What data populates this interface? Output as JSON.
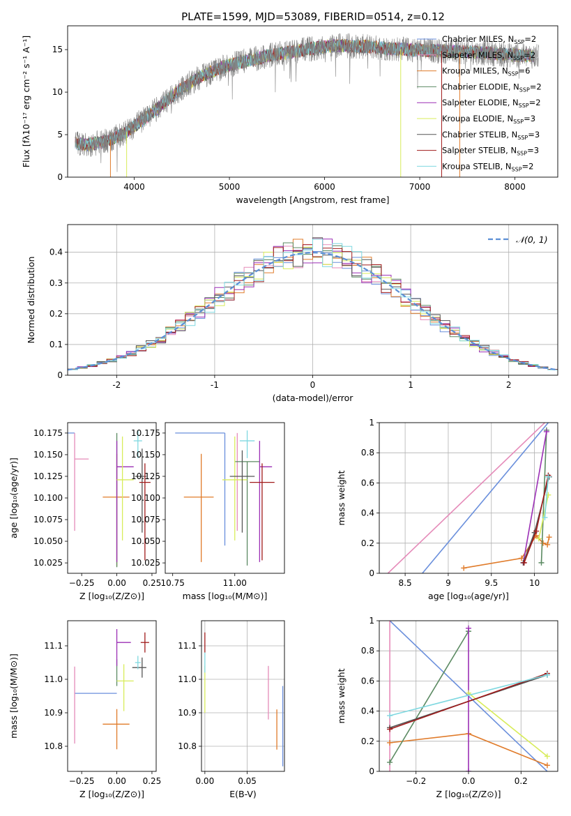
{
  "figure_title": "PLATE=1599, MJD=53089, FIBERID=0514, z=0.12",
  "colors": {
    "Chabrier MILES": "#6a8fdc",
    "Salpeter MILES": "#e58bb9",
    "Kroupa MILES": "#e07b2a",
    "Chabrier ELODIE": "#5b8a62",
    "Salpeter ELODIE": "#9b2fb5",
    "Kroupa ELODIE": "#d8ec5a",
    "Chabrier STELIB": "#555555",
    "Salpeter STELIB": "#a01a1a",
    "Kroupa STELIB": "#7fd8e0"
  },
  "chart_data": [
    {
      "type": "line",
      "id": "spectrum",
      "xlabel": "wavelength [Angstrom, rest frame]",
      "ylabel": "Flux [fλ10⁻¹⁷ erg cm⁻² s⁻¹ A⁻¹]",
      "xlim": [
        3300,
        8450
      ],
      "ylim": [
        0,
        17.8
      ],
      "xticks": [
        4000,
        5000,
        6000,
        7000,
        8000
      ],
      "yticks": [
        0,
        5,
        10,
        15
      ],
      "legend_position": "right",
      "legend": [
        {
          "series": "Chabrier MILES",
          "label": "Chabrier MILES, N",
          "sub": "SSP",
          "suffix": "=2"
        },
        {
          "series": "Salpeter MILES",
          "label": "Salpeter MILES, N",
          "sub": "SSP",
          "suffix": "=2"
        },
        {
          "series": "Kroupa MILES",
          "label": "Kroupa MILES, N",
          "sub": "SSP",
          "suffix": "=6"
        },
        {
          "series": "Chabrier ELODIE",
          "label": "Chabrier ELODIE, N",
          "sub": "SSP",
          "suffix": "=2"
        },
        {
          "series": "Salpeter ELODIE",
          "label": "Salpeter ELODIE, N",
          "sub": "SSP",
          "suffix": "=2"
        },
        {
          "series": "Kroupa ELODIE",
          "label": "Kroupa ELODIE, N",
          "sub": "SSP",
          "suffix": "=3"
        },
        {
          "series": "Chabrier STELIB",
          "label": "Chabrier STELIB, N",
          "sub": "SSP",
          "suffix": "=3"
        },
        {
          "series": "Salpeter STELIB",
          "label": "Salpeter STELIB, N",
          "sub": "SSP",
          "suffix": "=3"
        },
        {
          "series": "Kroupa STELIB",
          "label": "Kroupa STELIB, N",
          "sub": "SSP",
          "suffix": "=2"
        }
      ],
      "continuum": {
        "x": [
          3380,
          3500,
          3700,
          3900,
          4100,
          4300,
          4500,
          4700,
          4900,
          5100,
          5300,
          5500,
          5700,
          5900,
          6100,
          6300,
          6500,
          6700,
          6900,
          7100,
          7300,
          7500,
          7700,
          7900,
          8100,
          8200
        ],
        "y": [
          4.0,
          3.8,
          4.2,
          5.2,
          6.8,
          8.6,
          10.5,
          11.8,
          12.8,
          13.5,
          14.0,
          14.5,
          14.8,
          15.2,
          15.5,
          15.4,
          15.3,
          15.1,
          15.0,
          14.9,
          14.8,
          14.7,
          14.6,
          14.4,
          14.3,
          14.2
        ]
      },
      "model_x_range": [
        3380,
        8200
      ],
      "data_x_range": [
        3380,
        8250
      ]
    },
    {
      "type": "bar",
      "id": "residuals",
      "xlabel": "(data-model)/error",
      "ylabel": "Normed distribution",
      "xlim": [
        -2.5,
        2.5
      ],
      "ylim": [
        0,
        0.49
      ],
      "xticks": [
        -2,
        -1,
        0,
        1,
        2
      ],
      "yticks": [
        0.0,
        0.1,
        0.2,
        0.3,
        0.4
      ],
      "grid": true,
      "legend": "𝒩(0, 1)",
      "legend_position": "top-right",
      "bin_width": 0.1,
      "reference": "normal(0,1)"
    },
    {
      "type": "scatter",
      "id": "age-vs-Z",
      "xlabel": "Z [log₁₀(Z/Z⊙)]",
      "ylabel": "age  [log₁₀(age/yr)]",
      "xlim": [
        -0.35,
        0.28
      ],
      "ylim": [
        10.013,
        10.187
      ],
      "xticks": [
        -0.25,
        0.0,
        0.25
      ],
      "xticklabels": [
        "−0.25",
        "0.00",
        "0.25"
      ],
      "yticks": [
        10.025,
        10.05,
        10.075,
        10.1,
        10.125,
        10.15,
        10.175
      ],
      "yticklabels": [
        "10.025",
        "10.050",
        "10.075",
        "10.100",
        "10.125",
        "10.150",
        "10.175"
      ],
      "grid": false,
      "points": [
        {
          "series": "Chabrier MILES",
          "x": -0.3,
          "y": 10.175,
          "x_err": [
            0.3,
            0.0
          ],
          "y_err": [
            0.0,
            0.0
          ]
        },
        {
          "series": "Salpeter MILES",
          "x": -0.3,
          "y": 10.145,
          "x_err": [
            0.0,
            0.1
          ],
          "y_err": [
            0.083,
            0.03
          ]
        },
        {
          "series": "Kroupa MILES",
          "x": 0.0,
          "y": 10.101,
          "x_err": [
            0.1,
            0.09
          ],
          "y_err": [
            0.08,
            0.05
          ]
        },
        {
          "series": "Chabrier ELODIE",
          "x": 0.0,
          "y": 10.175,
          "x_err": [
            0.0,
            0.0
          ],
          "y_err": [
            0.155,
            0.0
          ]
        },
        {
          "series": "Salpeter ELODIE",
          "x": 0.0,
          "y": 10.136,
          "x_err": [
            0.0,
            0.12
          ],
          "y_err": [
            0.11,
            0.03
          ]
        },
        {
          "series": "Kroupa ELODIE",
          "x": 0.04,
          "y": 10.121,
          "x_err": [
            0.04,
            0.08
          ],
          "y_err": [
            0.07,
            0.05
          ]
        },
        {
          "series": "Chabrier STELIB",
          "x": 0.18,
          "y": 10.125,
          "x_err": [
            0.05,
            0.03
          ],
          "y_err": [
            0.065,
            0.032
          ]
        },
        {
          "series": "Salpeter STELIB",
          "x": 0.2,
          "y": 10.118,
          "x_err": [
            0.04,
            0.04
          ],
          "y_err": [
            0.09,
            0.022
          ]
        },
        {
          "series": "Kroupa STELIB",
          "x": 0.15,
          "y": 10.166,
          "x_err": [
            0.03,
            0.03
          ],
          "y_err": [
            0.02,
            0.012
          ]
        }
      ]
    },
    {
      "type": "scatter",
      "id": "age-vs-mass",
      "xlabel": "mass [log₁₀(M/M⊙)]",
      "ylabel": "",
      "xlim": [
        10.72,
        11.2
      ],
      "ylim": [
        10.013,
        10.187
      ],
      "xticks": [
        10.75,
        11.0
      ],
      "xticklabels": [
        "10.75",
        "11.00"
      ],
      "yticks": [
        10.025,
        10.05,
        10.075,
        10.1,
        10.125,
        10.15,
        10.175
      ],
      "yticklabels": [
        "10.025",
        "10.050",
        "10.075",
        "10.100",
        "10.125",
        "10.150",
        "10.175"
      ],
      "grid": false,
      "points": [
        {
          "series": "Chabrier MILES",
          "x": 10.96,
          "y": 10.175,
          "x_err": [
            0.2,
            0.0
          ],
          "y_err": [
            0.13,
            0.0
          ]
        },
        {
          "series": "Salpeter MILES",
          "x": 11.01,
          "y": 10.145,
          "x_err": [
            0.0,
            0.0
          ],
          "y_err": [
            0.083,
            0.03
          ]
        },
        {
          "series": "Kroupa MILES",
          "x": 10.865,
          "y": 10.101,
          "x_err": [
            0.07,
            0.05
          ],
          "y_err": [
            0.075,
            0.05
          ]
        },
        {
          "series": "Chabrier ELODIE",
          "x": 11.05,
          "y": 10.142,
          "x_err": [
            0.05,
            0.05
          ],
          "y_err": [
            0.12,
            0.0
          ]
        },
        {
          "series": "Salpeter ELODIE",
          "x": 11.1,
          "y": 10.136,
          "x_err": [
            0.0,
            0.05
          ],
          "y_err": [
            0.11,
            0.03
          ]
        },
        {
          "series": "Kroupa ELODIE",
          "x": 11.0,
          "y": 10.121,
          "x_err": [
            0.05,
            0.05
          ],
          "y_err": [
            0.07,
            0.05
          ]
        },
        {
          "series": "Chabrier STELIB",
          "x": 11.03,
          "y": 10.125,
          "x_err": [
            0.05,
            0.05
          ],
          "y_err": [
            0.065,
            0.03
          ]
        },
        {
          "series": "Salpeter STELIB",
          "x": 11.11,
          "y": 10.118,
          "x_err": [
            0.05,
            0.05
          ],
          "y_err": [
            0.09,
            0.022
          ]
        },
        {
          "series": "Kroupa STELIB",
          "x": 11.05,
          "y": 10.166,
          "x_err": [
            0.03,
            0.03
          ],
          "y_err": [
            0.02,
            0.012
          ]
        }
      ]
    },
    {
      "type": "line",
      "id": "massweight-vs-age",
      "xlabel": "age  [log₁₀(age/yr)]",
      "ylabel": "mass weight",
      "xlim": [
        8.2,
        10.27
      ],
      "ylim": [
        0.0,
        1.0
      ],
      "xticks": [
        8.5,
        9.0,
        9.5,
        10.0
      ],
      "yticks": [
        0.0,
        0.2,
        0.4,
        0.6,
        0.8,
        1.0
      ],
      "grid": true,
      "series": [
        {
          "name": "Chabrier MILES",
          "x": [
            8.7,
            10.16
          ],
          "y": [
            0.0,
            1.0
          ],
          "markers": false
        },
        {
          "name": "Salpeter MILES",
          "x": [
            8.3,
            10.12
          ],
          "y": [
            0.0,
            1.0
          ],
          "markers": false
        },
        {
          "name": "Kroupa MILES",
          "x": [
            9.18,
            9.85,
            10.02,
            10.1,
            10.15,
            10.17
          ],
          "y": [
            0.035,
            0.1,
            0.25,
            0.2,
            0.19,
            0.24
          ],
          "markers": true
        },
        {
          "name": "Chabrier ELODIE",
          "x": [
            10.08,
            10.14
          ],
          "y": [
            0.07,
            0.95
          ],
          "markers": true
        },
        {
          "name": "Salpeter ELODIE",
          "x": [
            9.87,
            10.14
          ],
          "y": [
            0.07,
            0.94
          ],
          "markers": true
        },
        {
          "name": "Kroupa ELODIE",
          "x": [
            10.05,
            10.16
          ],
          "y": [
            0.23,
            0.52
          ],
          "markers": true
        },
        {
          "name": "Chabrier STELIB",
          "x": [
            9.87,
            10.0,
            10.17
          ],
          "y": [
            0.07,
            0.27,
            0.64
          ],
          "markers": true
        },
        {
          "name": "Salpeter STELIB",
          "x": [
            9.88,
            10.02,
            10.16
          ],
          "y": [
            0.07,
            0.28,
            0.65
          ],
          "markers": true
        },
        {
          "name": "Kroupa STELIB",
          "x": [
            10.12,
            10.16
          ],
          "y": [
            0.37,
            0.64
          ],
          "markers": true
        }
      ]
    },
    {
      "type": "scatter",
      "id": "mass-vs-Z",
      "xlabel": "Z [log₁₀(Z/Z⊙)]",
      "ylabel": "mass [log₁₀(M/M⊙)]",
      "xlim": [
        -0.35,
        0.28
      ],
      "ylim": [
        10.725,
        11.175
      ],
      "xticks": [
        -0.25,
        0.0,
        0.25
      ],
      "xticklabels": [
        "−0.25",
        "0.00",
        "0.25"
      ],
      "yticks": [
        10.8,
        10.9,
        11.0,
        11.1
      ],
      "yticklabels": [
        "10.8",
        "10.9",
        "11.0",
        "11.1"
      ],
      "grid": false,
      "points": [
        {
          "series": "Chabrier MILES",
          "x": 0.0,
          "y": 10.958,
          "x_err": [
            0.3,
            0.0
          ],
          "y_err": [
            0.0,
            0.0
          ]
        },
        {
          "series": "Salpeter MILES",
          "x": -0.3,
          "y": 11.008,
          "x_err": [
            0.0,
            0.0
          ],
          "y_err": [
            0.2,
            0.03
          ]
        },
        {
          "series": "Kroupa MILES",
          "x": 0.0,
          "y": 10.866,
          "x_err": [
            0.1,
            0.09
          ],
          "y_err": [
            0.075,
            0.045
          ]
        },
        {
          "series": "Chabrier ELODIE",
          "x": 0.0,
          "y": 11.03,
          "x_err": [
            0.0,
            0.0
          ],
          "y_err": [
            0.05,
            0.03
          ]
        },
        {
          "series": "Salpeter ELODIE",
          "x": 0.0,
          "y": 11.11,
          "x_err": [
            0.0,
            0.1
          ],
          "y_err": [
            0.07,
            0.04
          ]
        },
        {
          "series": "Kroupa ELODIE",
          "x": 0.05,
          "y": 10.995,
          "x_err": [
            0.05,
            0.07
          ],
          "y_err": [
            0.09,
            0.05
          ]
        },
        {
          "series": "Chabrier STELIB",
          "x": 0.18,
          "y": 11.035,
          "x_err": [
            0.07,
            0.03
          ],
          "y_err": [
            0.03,
            0.03
          ]
        },
        {
          "series": "Salpeter STELIB",
          "x": 0.2,
          "y": 11.11,
          "x_err": [
            0.03,
            0.03
          ],
          "y_err": [
            0.03,
            0.03
          ]
        },
        {
          "series": "Kroupa STELIB",
          "x": 0.15,
          "y": 11.05,
          "x_err": [
            0.02,
            0.02
          ],
          "y_err": [
            0.02,
            0.02
          ]
        }
      ]
    },
    {
      "type": "scatter",
      "id": "mass-vs-EBV",
      "xlabel": "E(B-V)",
      "ylabel": "",
      "xlim": [
        -0.004,
        0.094
      ],
      "ylim": [
        10.725,
        11.175
      ],
      "xticks": [
        0.0,
        0.05
      ],
      "xticklabels": [
        "0.00",
        "0.05"
      ],
      "yticks": [
        10.8,
        10.9,
        11.0,
        11.1
      ],
      "yticklabels": [
        "10.8",
        "10.9",
        "11.0",
        "11.1"
      ],
      "grid": true,
      "points": [
        {
          "series": "Chabrier MILES",
          "x": 0.092,
          "y": 10.86,
          "x_err": [
            0,
            0
          ],
          "y_err": [
            0.12,
            0.12
          ]
        },
        {
          "series": "Salpeter MILES",
          "x": 0.075,
          "y": 10.96,
          "x_err": [
            0,
            0
          ],
          "y_err": [
            0.08,
            0.08
          ]
        },
        {
          "series": "Kroupa MILES",
          "x": 0.085,
          "y": 10.85,
          "x_err": [
            0,
            0
          ],
          "y_err": [
            0.06,
            0.06
          ]
        },
        {
          "series": "Kroupa ELODIE",
          "x": 0.0,
          "y": 10.97,
          "x_err": [
            0,
            0
          ],
          "y_err": [
            0.07,
            0.07
          ]
        },
        {
          "series": "Salpeter STELIB",
          "x": 0.0,
          "y": 11.11,
          "x_err": [
            0,
            0
          ],
          "y_err": [
            0.03,
            0.03
          ]
        },
        {
          "series": "Kroupa STELIB",
          "x": 0.0,
          "y": 11.05,
          "x_err": [
            0,
            0
          ],
          "y_err": [
            0.03,
            0.03
          ]
        }
      ]
    },
    {
      "type": "line",
      "id": "massweight-vs-Z",
      "xlabel": "Z [log₁₀(Z/Z⊙)]",
      "ylabel": "mass weight",
      "xlim": [
        -0.34,
        0.34
      ],
      "ylim": [
        0.0,
        1.0
      ],
      "xticks": [
        -0.2,
        0.0,
        0.2
      ],
      "xticklabels": [
        "−0.2",
        "0.0",
        "0.2"
      ],
      "yticks": [
        0.0,
        0.2,
        0.4,
        0.6,
        0.8,
        1.0
      ],
      "grid": true,
      "series": [
        {
          "name": "Chabrier MILES",
          "x": [
            -0.3,
            0.3
          ],
          "y": [
            1.0,
            0.0
          ],
          "markers": false
        },
        {
          "name": "Salpeter MILES",
          "x": [
            -0.3,
            -0.3
          ],
          "y": [
            0.0,
            1.0
          ],
          "markers": false
        },
        {
          "name": "Kroupa MILES",
          "x": [
            -0.3,
            0.0,
            0.3
          ],
          "y": [
            0.19,
            0.25,
            0.04
          ],
          "markers": true
        },
        {
          "name": "Chabrier ELODIE",
          "x": [
            -0.3,
            0.0
          ],
          "y": [
            0.06,
            0.93
          ],
          "markers": true
        },
        {
          "name": "Salpeter ELODIE",
          "x": [
            0.0,
            0.0
          ],
          "y": [
            0.0,
            0.95
          ],
          "markers": true
        },
        {
          "name": "Kroupa ELODIE",
          "x": [
            0.0,
            0.3
          ],
          "y": [
            0.52,
            0.1
          ],
          "markers": true
        },
        {
          "name": "Chabrier STELIB",
          "x": [
            -0.3,
            0.3
          ],
          "y": [
            0.29,
            0.64
          ],
          "markers": true
        },
        {
          "name": "Salpeter STELIB",
          "x": [
            -0.3,
            0.3
          ],
          "y": [
            0.28,
            0.65
          ],
          "markers": true
        },
        {
          "name": "Kroupa STELIB",
          "x": [
            -0.3,
            0.3
          ],
          "y": [
            0.37,
            0.64
          ],
          "markers": true
        }
      ]
    }
  ]
}
